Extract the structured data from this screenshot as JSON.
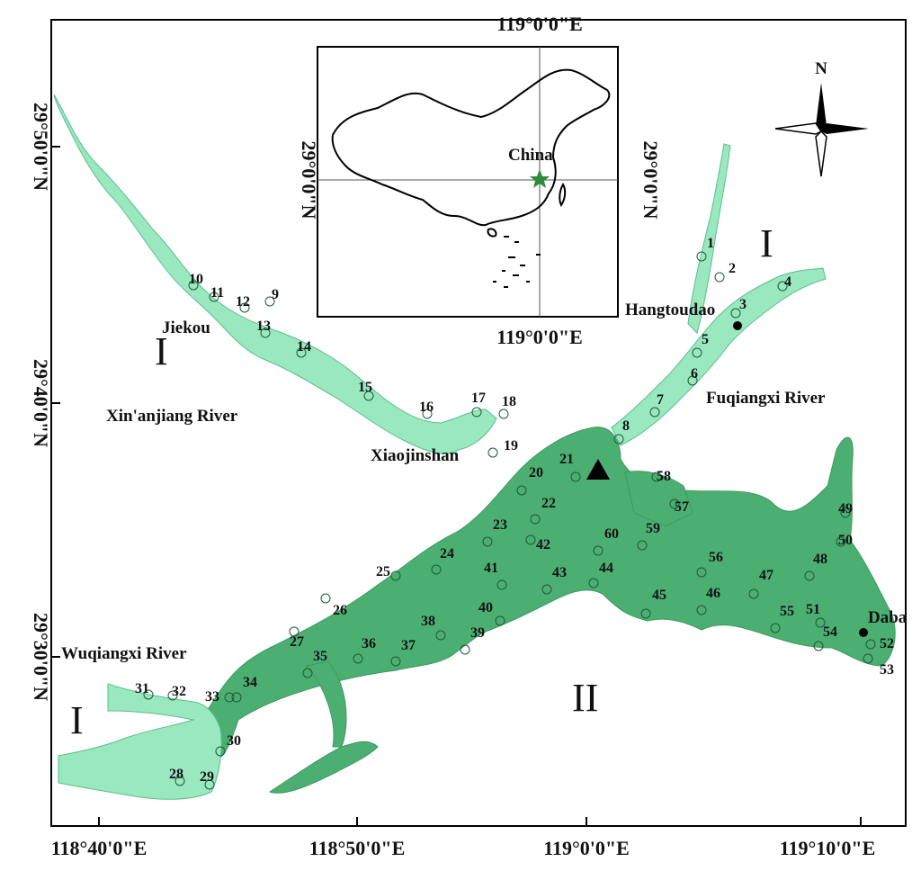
{
  "colors": {
    "zone_I_water": "#9ae8c0",
    "zone_II_water": "#4caf72",
    "star": "#2e8b3a"
  },
  "axes": {
    "x_ticks": [
      "118°40'0\"E",
      "118°50'0\"E",
      "119°0'0\"E",
      "119°10'0\"E"
    ],
    "y_ticks": [
      "29°50'0\"N",
      "29°40'0\"N",
      "29°30'0\"N"
    ]
  },
  "inset": {
    "top_label": "119°0'0\"E",
    "bottom_label": "119°0'0\"E",
    "left_label": "29°0'0\"N",
    "right_label": "29°0'0\"N",
    "country_label": "China"
  },
  "compass": {
    "north_label": "N"
  },
  "places": {
    "jiekou": "Jiekou",
    "xinanjiang": "Xin'anjiang River",
    "xiaojinshan": "Xiaojinshan",
    "hangtoudao": "Hangtoudao",
    "fuqiangxi": "Fuqiangxi River",
    "wuqiangxi": "Wuqiangxi River",
    "daba": "Daba"
  },
  "zones": {
    "I": "I",
    "II": "II"
  },
  "sites": [
    "1",
    "2",
    "3",
    "4",
    "5",
    "6",
    "7",
    "8",
    "9",
    "10",
    "11",
    "12",
    "13",
    "14",
    "15",
    "16",
    "17",
    "18",
    "19",
    "20",
    "21",
    "22",
    "23",
    "24",
    "25",
    "26",
    "27",
    "28",
    "29",
    "30",
    "31",
    "32",
    "33",
    "34",
    "35",
    "36",
    "37",
    "38",
    "39",
    "40",
    "41",
    "42",
    "43",
    "44",
    "45",
    "46",
    "47",
    "48",
    "49",
    "50",
    "51",
    "52",
    "53",
    "54",
    "55",
    "56",
    "57",
    "58",
    "59",
    "60"
  ]
}
